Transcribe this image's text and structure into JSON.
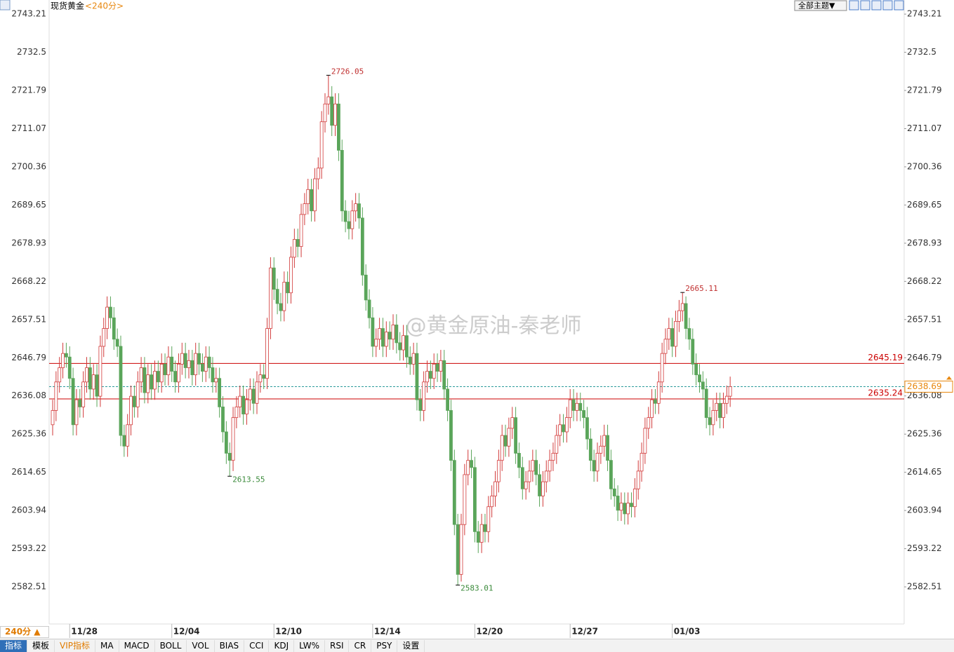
{
  "chart_data": {
    "type": "candlestick",
    "title": "现货黄金",
    "subtitle": "<240分>",
    "watermark": "@黄金原油-秦老师",
    "up_color": "#d23a3a",
    "down_color": "#5aa55a",
    "ylim": [
      2572.1,
      2745.2
    ],
    "yticks": [
      2582.51,
      2593.22,
      2603.94,
      2614.65,
      2625.36,
      2636.08,
      2646.79,
      2657.51,
      2668.22,
      2678.93,
      2689.65,
      2700.36,
      2711.07,
      2721.79,
      2732.5,
      2743.21
    ],
    "grid": false,
    "categories": [
      null,
      null,
      null,
      null,
      null,
      "11/28",
      null,
      null,
      null,
      null,
      null,
      null,
      null,
      null,
      null,
      null,
      null,
      null,
      null,
      null,
      null,
      null,
      null,
      null,
      null,
      null,
      null,
      null,
      null,
      null,
      null,
      null,
      null,
      null,
      null,
      "12/04",
      null,
      null,
      null,
      null,
      null,
      null,
      null,
      null,
      null,
      null,
      null,
      null,
      null,
      null,
      null,
      null,
      null,
      null,
      null,
      null,
      null,
      null,
      null,
      null,
      null,
      null,
      null,
      null,
      null,
      "12/10",
      null,
      null,
      null,
      null,
      null,
      null,
      null,
      null,
      null,
      null,
      null,
      null,
      null,
      null,
      null,
      null,
      null,
      null,
      null,
      null,
      null,
      null,
      null,
      null,
      null,
      null,
      null,
      null,
      "12/14",
      null,
      null,
      null,
      null,
      null,
      null,
      null,
      null,
      null,
      null,
      null,
      null,
      null,
      null,
      null,
      null,
      null,
      null,
      null,
      null,
      null,
      null,
      null,
      null,
      null,
      null,
      null,
      null,
      null,
      "12/20",
      null,
      null,
      null,
      null,
      null,
      null,
      null,
      null,
      null,
      null,
      null,
      null,
      null,
      null,
      null,
      null,
      null,
      null,
      null,
      null,
      null,
      null,
      null,
      null,
      null,
      null,
      null,
      "12/27",
      null,
      null,
      null,
      null,
      null,
      null,
      null,
      null,
      null,
      null,
      null,
      null,
      null,
      null,
      null,
      null,
      null,
      null,
      null,
      null,
      null,
      null,
      null,
      null,
      null,
      null,
      null,
      null,
      null,
      "01/03",
      null,
      null,
      null,
      null,
      null,
      null,
      null,
      null,
      null,
      null,
      null,
      null,
      null,
      null,
      null,
      null,
      null
    ],
    "open": [
      2628,
      2632,
      2640,
      2644,
      2648,
      2647,
      2641,
      2628,
      2635,
      2633,
      2640,
      2644,
      2638,
      2642,
      2636,
      2650,
      2655,
      2661,
      2658,
      2652,
      2650,
      2625,
      2622,
      2628,
      2636,
      2633,
      2640,
      2644,
      2637,
      2642,
      2638,
      2643,
      2640,
      2645,
      2642,
      2647,
      2643,
      2640,
      2645,
      2648,
      2644,
      2646,
      2642,
      2648,
      2645,
      2643,
      2647,
      2644,
      2640,
      2641,
      2633,
      2626,
      2620,
      2618,
      2630,
      2633,
      2636,
      2631,
      2635,
      2638,
      2634,
      2640,
      2642,
      2641,
      2655,
      2672,
      2666,
      2662,
      2660,
      2668,
      2665,
      2675,
      2680,
      2678,
      2687,
      2690,
      2694,
      2688,
      2697,
      2700,
      2713,
      2718,
      2720,
      2712,
      2718,
      2705,
      2688,
      2685,
      2683,
      2688,
      2690,
      2686,
      2670,
      2663,
      2658,
      2650,
      2652,
      2655,
      2650,
      2654,
      2652,
      2656,
      2651,
      2649,
      2653,
      2647,
      2645,
      2648,
      2635,
      2632,
      2640,
      2643,
      2641,
      2645,
      2643,
      2646,
      2638,
      2632,
      2618,
      2600,
      2586,
      2600,
      2614,
      2618,
      2616,
      2598,
      2595,
      2600,
      2598,
      2605,
      2608,
      2612,
      2618,
      2625,
      2622,
      2627,
      2630,
      2620,
      2616,
      2610,
      2612,
      2615,
      2618,
      2614,
      2608,
      2612,
      2615,
      2618,
      2620,
      2625,
      2628,
      2626,
      2630,
      2635,
      2632,
      2634,
      2632,
      2630,
      2624,
      2618,
      2615,
      2620,
      2622,
      2625,
      2618,
      2610,
      2608,
      2604,
      2606,
      2603,
      2606,
      2605,
      2610,
      2615,
      2620,
      2627,
      2630,
      2635,
      2634,
      2640,
      2648,
      2652,
      2655,
      2650,
      2657,
      2660,
      2662,
      2655,
      2652,
      2645,
      2642,
      2640,
      2638,
      2630,
      2628,
      2632,
      2634,
      2630,
      2634,
      2636
    ],
    "high": [
      2635,
      2643,
      2647,
      2651,
      2651,
      2650,
      2644,
      2638,
      2638,
      2643,
      2647,
      2647,
      2645,
      2645,
      2653,
      2658,
      2664,
      2664,
      2661,
      2655,
      2653,
      2628,
      2631,
      2639,
      2639,
      2643,
      2647,
      2647,
      2645,
      2645,
      2646,
      2646,
      2648,
      2648,
      2650,
      2650,
      2646,
      2648,
      2651,
      2651,
      2649,
      2649,
      2651,
      2651,
      2648,
      2650,
      2650,
      2647,
      2644,
      2644,
      2636,
      2629,
      2623,
      2633,
      2636,
      2639,
      2639,
      2638,
      2641,
      2641,
      2643,
      2645,
      2645,
      2658,
      2675,
      2675,
      2669,
      2665,
      2671,
      2671,
      2678,
      2683,
      2683,
      2690,
      2693,
      2697,
      2697,
      2700,
      2703,
      2716,
      2721,
      2726.05,
      2723,
      2721,
      2721,
      2708,
      2691,
      2688,
      2691,
      2693,
      2693,
      2689,
      2673,
      2666,
      2661,
      2655,
      2658,
      2658,
      2657,
      2657,
      2659,
      2659,
      2654,
      2656,
      2656,
      2650,
      2651,
      2651,
      2638,
      2643,
      2646,
      2646,
      2648,
      2648,
      2649,
      2649,
      2641,
      2635,
      2621,
      2603,
      2603,
      2617,
      2621,
      2621,
      2619,
      2601,
      2603,
      2603,
      2608,
      2611,
      2615,
      2621,
      2628,
      2628,
      2630,
      2633,
      2633,
      2623,
      2619,
      2615,
      2618,
      2621,
      2621,
      2617,
      2615,
      2618,
      2621,
      2623,
      2628,
      2631,
      2631,
      2633,
      2638,
      2638,
      2637,
      2637,
      2635,
      2633,
      2627,
      2621,
      2623,
      2625,
      2628,
      2628,
      2621,
      2613,
      2611,
      2609,
      2609,
      2609,
      2609,
      2613,
      2618,
      2623,
      2630,
      2633,
      2638,
      2638,
      2643,
      2651,
      2655,
      2658,
      2658,
      2660,
      2663,
      2665.11,
      2664,
      2658,
      2655,
      2648,
      2645,
      2643,
      2641,
      2633,
      2635,
      2637,
      2637,
      2637,
      2639,
      2641.5
    ],
    "low": [
      2625,
      2629,
      2637,
      2641,
      2644,
      2638,
      2625,
      2625,
      2630,
      2630,
      2637,
      2635,
      2635,
      2633,
      2633,
      2647,
      2652,
      2655,
      2649,
      2647,
      2622,
      2619,
      2619,
      2625,
      2630,
      2630,
      2637,
      2634,
      2634,
      2635,
      2635,
      2637,
      2637,
      2639,
      2639,
      2640,
      2637,
      2637,
      2642,
      2641,
      2641,
      2639,
      2639,
      2642,
      2640,
      2640,
      2641,
      2637,
      2637,
      2630,
      2623,
      2617,
      2613.55,
      2615,
      2627,
      2630,
      2628,
      2628,
      2632,
      2631,
      2631,
      2637,
      2638,
      2638,
      2652,
      2663,
      2659,
      2657,
      2657,
      2662,
      2662,
      2672,
      2675,
      2675,
      2684,
      2687,
      2685,
      2685,
      2694,
      2697,
      2710,
      2715,
      2709,
      2709,
      2702,
      2685,
      2682,
      2680,
      2680,
      2685,
      2683,
      2667,
      2660,
      2655,
      2647,
      2647,
      2649,
      2647,
      2647,
      2649,
      2649,
      2648,
      2646,
      2646,
      2644,
      2642,
      2642,
      2632,
      2629,
      2629,
      2637,
      2638,
      2638,
      2640,
      2640,
      2635,
      2629,
      2615,
      2597,
      2583.01,
      2584,
      2597,
      2611,
      2613,
      2595,
      2592,
      2592,
      2595,
      2595,
      2602,
      2605,
      2609,
      2615,
      2619,
      2619,
      2624,
      2617,
      2613,
      2607,
      2607,
      2609,
      2612,
      2611,
      2605,
      2605,
      2609,
      2612,
      2615,
      2617,
      2622,
      2623,
      2623,
      2627,
      2629,
      2629,
      2629,
      2627,
      2621,
      2615,
      2612,
      2612,
      2617,
      2619,
      2615,
      2607,
      2605,
      2601,
      2601,
      2600,
      2600,
      2602,
      2602,
      2607,
      2612,
      2617,
      2624,
      2627,
      2631,
      2631,
      2637,
      2645,
      2649,
      2647,
      2647,
      2654,
      2657,
      2652,
      2649,
      2642,
      2639,
      2637,
      2635,
      2627,
      2625,
      2625,
      2629,
      2627,
      2627,
      2631,
      2633
    ],
    "close": [
      2632,
      2640,
      2644,
      2648,
      2647,
      2641,
      2628,
      2635,
      2633,
      2640,
      2644,
      2638,
      2642,
      2636,
      2650,
      2655,
      2661,
      2658,
      2652,
      2650,
      2625,
      2622,
      2628,
      2636,
      2633,
      2640,
      2644,
      2637,
      2642,
      2638,
      2643,
      2640,
      2645,
      2642,
      2647,
      2643,
      2640,
      2645,
      2648,
      2644,
      2646,
      2642,
      2648,
      2645,
      2643,
      2647,
      2644,
      2640,
      2641,
      2633,
      2626,
      2620,
      2618,
      2630,
      2633,
      2636,
      2631,
      2635,
      2638,
      2634,
      2640,
      2642,
      2641,
      2655,
      2672,
      2666,
      2662,
      2660,
      2668,
      2665,
      2675,
      2680,
      2678,
      2687,
      2690,
      2694,
      2688,
      2697,
      2700,
      2713,
      2718,
      2720,
      2712,
      2718,
      2705,
      2688,
      2685,
      2683,
      2688,
      2690,
      2686,
      2670,
      2663,
      2658,
      2650,
      2652,
      2655,
      2650,
      2654,
      2652,
      2656,
      2651,
      2649,
      2653,
      2647,
      2645,
      2648,
      2635,
      2632,
      2640,
      2643,
      2641,
      2645,
      2643,
      2646,
      2638,
      2632,
      2618,
      2600,
      2586,
      2600,
      2614,
      2618,
      2616,
      2598,
      2595,
      2600,
      2598,
      2605,
      2608,
      2612,
      2618,
      2625,
      2622,
      2627,
      2630,
      2620,
      2616,
      2610,
      2612,
      2615,
      2618,
      2614,
      2608,
      2612,
      2615,
      2618,
      2620,
      2625,
      2628,
      2626,
      2630,
      2635,
      2632,
      2634,
      2632,
      2630,
      2624,
      2618,
      2615,
      2620,
      2622,
      2625,
      2618,
      2610,
      2608,
      2604,
      2606,
      2603,
      2606,
      2605,
      2610,
      2615,
      2620,
      2627,
      2630,
      2635,
      2634,
      2640,
      2648,
      2652,
      2655,
      2650,
      2657,
      2660,
      2662,
      2655,
      2652,
      2645,
      2642,
      2640,
      2638,
      2630,
      2628,
      2632,
      2634,
      2630,
      2634,
      2636,
      2638.69
    ],
    "high_labels": [
      2726.05,
      2665.11
    ],
    "low_labels": [
      2613.55,
      2583.01
    ],
    "hlines": [
      {
        "value": 2645.19,
        "color": "#cc0000"
      },
      {
        "value": 2635.24,
        "color": "#cc0000"
      }
    ],
    "last_price": {
      "value": 2638.69,
      "color": "#e8870e",
      "line_color": "#2a9a9a"
    }
  },
  "ui": {
    "theme_button": "全部主题▼",
    "timeframe": "240分 ▲",
    "tabs": [
      "指标",
      "模板",
      "VIP指标",
      "MA",
      "MACD",
      "BOLL",
      "VOL",
      "BIAS",
      "CCI",
      "KDJ",
      "LW%",
      "RSI",
      "CR",
      "PSY",
      "设置"
    ]
  }
}
